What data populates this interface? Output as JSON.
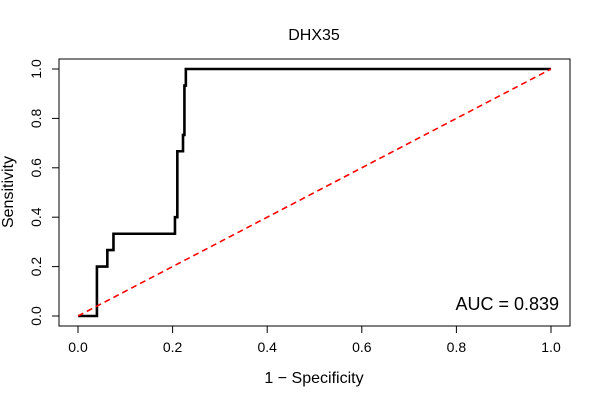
{
  "chart_data": {
    "type": "line",
    "title": "DHX35",
    "xlabel": "1 − Specificity",
    "ylabel": "Sensitivity",
    "xlim": [
      0,
      1
    ],
    "ylim": [
      0,
      1
    ],
    "x_ticks": [
      0.0,
      0.2,
      0.4,
      0.6,
      0.8,
      1.0
    ],
    "y_ticks": [
      0.0,
      0.2,
      0.4,
      0.6,
      0.8,
      1.0
    ],
    "x_tick_labels": [
      "0.0",
      "0.2",
      "0.4",
      "0.6",
      "0.8",
      "1.0"
    ],
    "y_tick_labels": [
      "0.0",
      "0.2",
      "0.4",
      "0.6",
      "0.8",
      "1.0"
    ],
    "grid": false,
    "annotation": "AUC = 0.839",
    "series": [
      {
        "color": "#000000",
        "style": "solid",
        "points": [
          [
            0.0,
            0.0
          ],
          [
            0.04,
            0.0
          ],
          [
            0.04,
            0.2
          ],
          [
            0.062,
            0.2
          ],
          [
            0.062,
            0.267
          ],
          [
            0.075,
            0.267
          ],
          [
            0.075,
            0.333
          ],
          [
            0.205,
            0.333
          ],
          [
            0.205,
            0.4
          ],
          [
            0.21,
            0.4
          ],
          [
            0.21,
            0.667
          ],
          [
            0.222,
            0.667
          ],
          [
            0.222,
            0.733
          ],
          [
            0.225,
            0.733
          ],
          [
            0.225,
            0.933
          ],
          [
            0.228,
            0.933
          ],
          [
            0.228,
            1.0
          ],
          [
            1.0,
            1.0
          ]
        ]
      },
      {
        "color": "#ff0000",
        "style": "dashed",
        "points": [
          [
            0.0,
            0.0
          ],
          [
            1.0,
            1.0
          ]
        ]
      }
    ]
  }
}
